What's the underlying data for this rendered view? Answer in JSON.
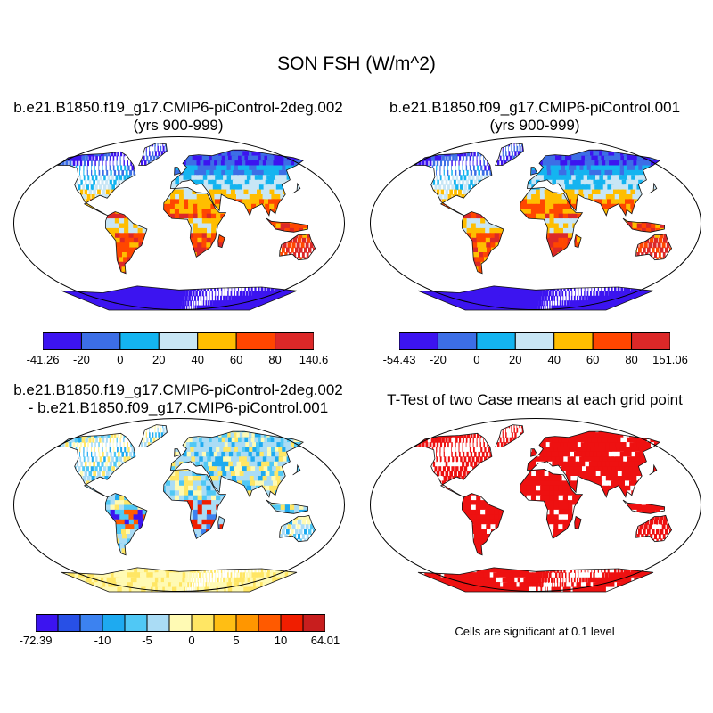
{
  "figure": {
    "title": "SON FSH (W/m^2)"
  },
  "panels": [
    {
      "title_line1": "b.e21.B1850.f19_g17.CMIP6-piControl-2deg.002",
      "title_line2": "(yrs 900-999)"
    },
    {
      "title_line1": "b.e21.B1850.f09_g17.CMIP6-piControl.001",
      "title_line2": "(yrs 900-999)"
    },
    {
      "title_line1": "b.e21.B1850.f19_g17.CMIP6-piControl-2deg.002",
      "title_line2": "- b.e21.B1850.f09_g17.CMIP6-piControl.001"
    },
    {
      "title_line1": "T-Test of two Case means at each grid point",
      "title_line2": ""
    }
  ],
  "colorbars": [
    {
      "colors": [
        "#3c14f0",
        "#3c6ee6",
        "#14b4f0",
        "#c8e6f5",
        "#ffbe00",
        "#ff4600",
        "#dc2828"
      ],
      "labels": [
        "-41.26",
        "-20",
        "0",
        "20",
        "40",
        "60",
        "80",
        "140.6"
      ]
    },
    {
      "colors": [
        "#3c14f0",
        "#3c6ee6",
        "#14b4f0",
        "#c8e6f5",
        "#ffbe00",
        "#ff4600",
        "#dc2828"
      ],
      "labels": [
        "-54.43",
        "-20",
        "0",
        "20",
        "40",
        "60",
        "80",
        "151.06"
      ]
    },
    {
      "colors": [
        "#3c14f0",
        "#2850e6",
        "#3c82f0",
        "#1eaaf0",
        "#50c8f5",
        "#aadcf5",
        "#fffab4",
        "#ffe664",
        "#ffbe14",
        "#ff9600",
        "#ff5a00",
        "#f01e00",
        "#c81e1e"
      ],
      "labels": [
        "-72.39",
        "",
        "",
        "-10",
        "",
        "-5",
        "",
        "0",
        "",
        "5",
        "",
        "10",
        "",
        "64.01"
      ]
    }
  ],
  "significance_note": "Cells are significant at 0.1 level",
  "legend_colors": {
    "significant": "#ee1111"
  }
}
